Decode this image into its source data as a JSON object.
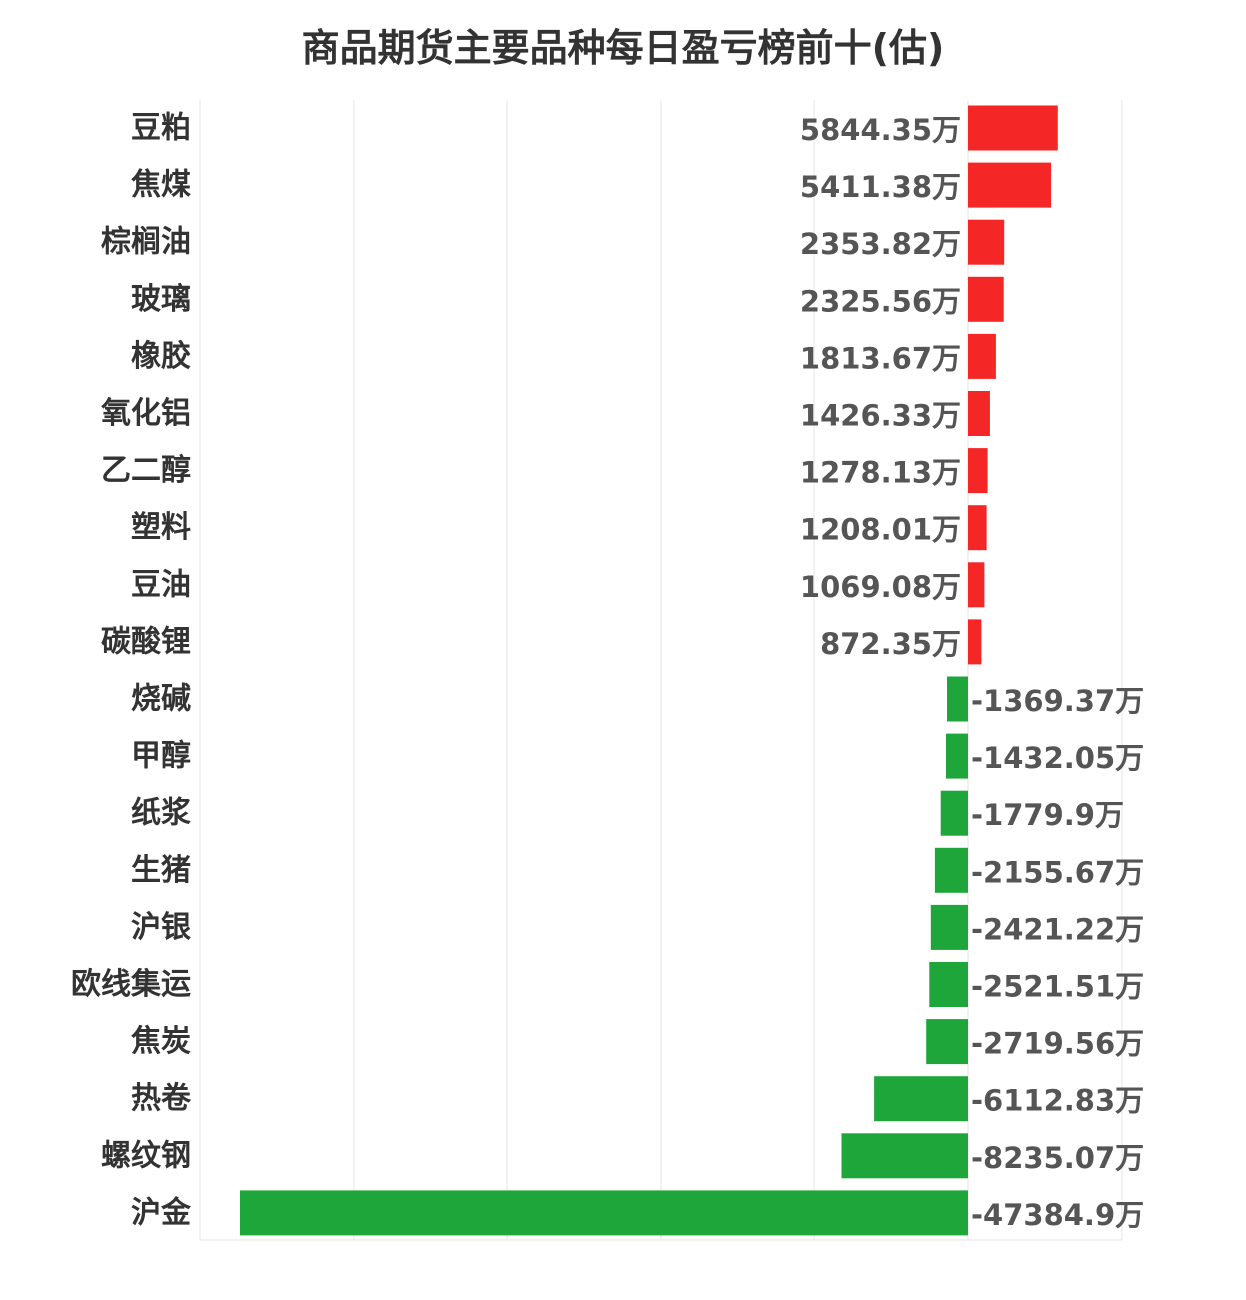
{
  "chart_data": {
    "type": "bar",
    "orientation": "horizontal",
    "title": "商品期货主要品种每日盈亏榜前十(估)",
    "unit": "万",
    "grid": true,
    "colors": {
      "positive": "#f52626",
      "negative": "#1ea63a"
    },
    "categories": [
      "豆粕",
      "焦煤",
      "棕榈油",
      "玻璃",
      "橡胶",
      "氧化铝",
      "乙二醇",
      "塑料",
      "豆油",
      "碳酸锂",
      "烧碱",
      "甲醇",
      "纸浆",
      "生猪",
      "沪银",
      "欧线集运",
      "焦炭",
      "热卷",
      "螺纹钢",
      "沪金"
    ],
    "values": [
      5844.35,
      5411.38,
      2353.82,
      2325.56,
      1813.67,
      1426.33,
      1278.13,
      1208.01,
      1069.08,
      872.35,
      -1369.37,
      -1432.05,
      -1779.9,
      -2155.67,
      -2421.22,
      -2521.51,
      -2719.56,
      -6112.83,
      -8235.07,
      -47384.9
    ],
    "value_labels": [
      "5844.35万",
      "5411.38万",
      "2353.82万",
      "2325.56万",
      "1813.67万",
      "1426.33万",
      "1278.13万",
      "1208.01万",
      "1069.08万",
      "872.35万",
      "-1369.37万",
      "-1432.05万",
      "-1779.9万",
      "-2155.67万",
      "-2421.22万",
      "-2521.51万",
      "-2719.56万",
      "-6112.83万",
      "-8235.07万",
      "-47384.9万"
    ]
  }
}
